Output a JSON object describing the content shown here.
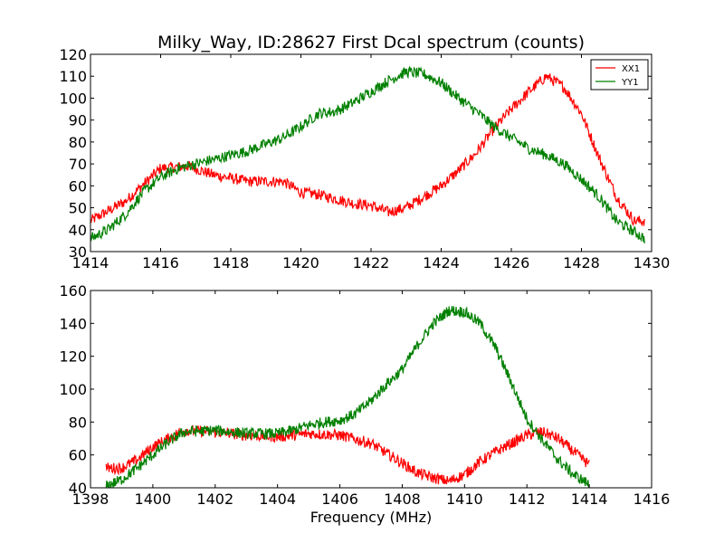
{
  "chart_data": [
    {
      "type": "line",
      "title": "Milky_Way, ID:28627 First Dcal spectrum (counts)",
      "xlabel": "",
      "ylabel": "",
      "xlim": [
        1414,
        1430
      ],
      "ylim": [
        30,
        120
      ],
      "xticks": [
        "1414",
        "1416",
        "1418",
        "1420",
        "1422",
        "1424",
        "1426",
        "1428",
        "1430"
      ],
      "yticks": [
        "30",
        "40",
        "50",
        "60",
        "70",
        "80",
        "90",
        "100",
        "110",
        "120"
      ],
      "legend_position": "top-right",
      "series": [
        {
          "name": "XX1",
          "color": "#ff0000",
          "points": [
            [
              1414.0,
              44
            ],
            [
              1415.0,
              53
            ],
            [
              1416.0,
              68
            ],
            [
              1416.8,
              69
            ],
            [
              1417.5,
              65
            ],
            [
              1418.5,
              62
            ],
            [
              1419.5,
              62
            ],
            [
              1420.0,
              57
            ],
            [
              1420.5,
              56
            ],
            [
              1421.0,
              54
            ],
            [
              1421.5,
              52
            ],
            [
              1422.0,
              51
            ],
            [
              1422.5,
              48
            ],
            [
              1423.0,
              50
            ],
            [
              1423.5,
              55
            ],
            [
              1424.0,
              60
            ],
            [
              1424.5,
              67
            ],
            [
              1425.0,
              75
            ],
            [
              1425.5,
              86
            ],
            [
              1426.0,
              95
            ],
            [
              1426.5,
              103
            ],
            [
              1427.0,
              110
            ],
            [
              1427.5,
              105
            ],
            [
              1428.0,
              93
            ],
            [
              1428.5,
              73
            ],
            [
              1429.0,
              55
            ],
            [
              1429.5,
              44
            ],
            [
              1429.8,
              44
            ]
          ]
        },
        {
          "name": "YY1",
          "color": "#008000",
          "points": [
            [
              1414.0,
              36
            ],
            [
              1414.5,
              40
            ],
            [
              1415.0,
              47
            ],
            [
              1415.5,
              57
            ],
            [
              1416.0,
              64
            ],
            [
              1416.5,
              68
            ],
            [
              1417.0,
              70
            ],
            [
              1417.5,
              72
            ],
            [
              1418.0,
              74
            ],
            [
              1418.5,
              76
            ],
            [
              1419.0,
              79
            ],
            [
              1419.5,
              82
            ],
            [
              1420.0,
              87
            ],
            [
              1420.5,
              93
            ],
            [
              1421.0,
              94
            ],
            [
              1421.5,
              98
            ],
            [
              1422.0,
              103
            ],
            [
              1422.5,
              108
            ],
            [
              1423.0,
              112
            ],
            [
              1423.5,
              111
            ],
            [
              1424.0,
              107
            ],
            [
              1424.5,
              100
            ],
            [
              1425.0,
              94
            ],
            [
              1425.5,
              87
            ],
            [
              1426.0,
              82
            ],
            [
              1426.5,
              77
            ],
            [
              1427.0,
              74
            ],
            [
              1427.5,
              70
            ],
            [
              1428.0,
              63
            ],
            [
              1428.5,
              55
            ],
            [
              1429.0,
              44
            ],
            [
              1429.5,
              39
            ],
            [
              1429.8,
              36
            ]
          ]
        }
      ]
    },
    {
      "type": "line",
      "title": "",
      "xlabel": "Frequency (MHz)",
      "ylabel": "",
      "xlim": [
        1398,
        1416
      ],
      "ylim": [
        40,
        160
      ],
      "xticks": [
        "1398",
        "1400",
        "1402",
        "1404",
        "1406",
        "1408",
        "1410",
        "1412",
        "1414",
        "1416"
      ],
      "yticks": [
        "40",
        "60",
        "80",
        "100",
        "120",
        "140",
        "160"
      ],
      "series": [
        {
          "name": "XX1",
          "color": "#ff0000",
          "points": [
            [
              1398.5,
              52
            ],
            [
              1399.0,
              52
            ],
            [
              1399.5,
              57
            ],
            [
              1400.0,
              65
            ],
            [
              1400.5,
              70
            ],
            [
              1401.0,
              75
            ],
            [
              1402.0,
              74
            ],
            [
              1403.0,
              72
            ],
            [
              1404.0,
              71
            ],
            [
              1405.0,
              73
            ],
            [
              1406.0,
              72
            ],
            [
              1407.0,
              67
            ],
            [
              1407.5,
              61
            ],
            [
              1408.0,
              55
            ],
            [
              1408.5,
              49
            ],
            [
              1409.0,
              46
            ],
            [
              1409.5,
              44
            ],
            [
              1410.0,
              48
            ],
            [
              1410.5,
              56
            ],
            [
              1411.0,
              62
            ],
            [
              1411.5,
              67
            ],
            [
              1412.0,
              72
            ],
            [
              1412.5,
              74
            ],
            [
              1413.0,
              70
            ],
            [
              1413.5,
              62
            ],
            [
              1414.0,
              54
            ]
          ]
        },
        {
          "name": "YY1",
          "color": "#008000",
          "points": [
            [
              1398.5,
              41
            ],
            [
              1399.0,
              45
            ],
            [
              1399.5,
              52
            ],
            [
              1400.0,
              60
            ],
            [
              1400.5,
              68
            ],
            [
              1401.0,
              74
            ],
            [
              1402.0,
              75
            ],
            [
              1403.0,
              73
            ],
            [
              1404.0,
              73
            ],
            [
              1404.5,
              75
            ],
            [
              1405.0,
              78
            ],
            [
              1405.5,
              80
            ],
            [
              1406.0,
              81
            ],
            [
              1406.5,
              85
            ],
            [
              1407.0,
              93
            ],
            [
              1407.5,
              103
            ],
            [
              1408.0,
              112
            ],
            [
              1408.5,
              127
            ],
            [
              1409.0,
              140
            ],
            [
              1409.5,
              148
            ],
            [
              1410.0,
              147
            ],
            [
              1410.5,
              140
            ],
            [
              1411.0,
              125
            ],
            [
              1411.5,
              104
            ],
            [
              1412.0,
              82
            ],
            [
              1412.5,
              69
            ],
            [
              1413.0,
              57
            ],
            [
              1413.5,
              48
            ],
            [
              1414.0,
              42
            ]
          ]
        }
      ]
    }
  ]
}
